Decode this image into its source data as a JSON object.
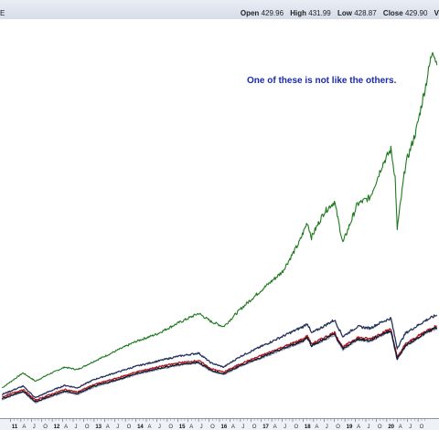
{
  "header": {
    "symbol_fragment": "E",
    "open_label": "Open",
    "open_value": "429.96",
    "high_label": "High",
    "high_value": "431.99",
    "low_label": "Low",
    "low_value": "428.87",
    "close_label": "Close",
    "close_value": "429.90",
    "trailing_fragment": "V"
  },
  "annotation": "One of these is not like the others.",
  "chart_data": {
    "type": "line",
    "title": "",
    "x_tick_labels": [
      "11",
      "A",
      "J",
      "O",
      "12",
      "A",
      "J",
      "O",
      "13",
      "A",
      "J",
      "O",
      "14",
      "A",
      "J",
      "O",
      "15",
      "A",
      "J",
      "O",
      "16",
      "A",
      "J",
      "O",
      "17",
      "A",
      "J",
      "O",
      "18",
      "A",
      "J",
      "O",
      "19",
      "A",
      "J",
      "O",
      "20",
      "A",
      "J",
      "O"
    ],
    "x_range": [
      "2010-10",
      "2021-04"
    ],
    "grid": false,
    "series": [
      {
        "color": "#1e7a1e",
        "points": [
          [
            2010.8,
            30
          ],
          [
            2011.3,
            48
          ],
          [
            2011.6,
            38
          ],
          [
            2011.9,
            46
          ],
          [
            2012.3,
            55
          ],
          [
            2012.6,
            52
          ],
          [
            2013.0,
            62
          ],
          [
            2013.5,
            74
          ],
          [
            2014.0,
            86
          ],
          [
            2014.5,
            95
          ],
          [
            2015.0,
            108
          ],
          [
            2015.5,
            120
          ],
          [
            2015.8,
            110
          ],
          [
            2016.1,
            104
          ],
          [
            2016.5,
            125
          ],
          [
            2017.0,
            148
          ],
          [
            2017.5,
            170
          ],
          [
            2017.9,
            205
          ],
          [
            2018.1,
            230
          ],
          [
            2018.2,
            212
          ],
          [
            2018.5,
            242
          ],
          [
            2018.75,
            255
          ],
          [
            2018.95,
            205
          ],
          [
            2019.3,
            252
          ],
          [
            2019.6,
            260
          ],
          [
            2019.9,
            300
          ],
          [
            2020.1,
            318
          ],
          [
            2020.2,
            285
          ],
          [
            2020.25,
            222
          ],
          [
            2020.45,
            300
          ],
          [
            2020.7,
            340
          ],
          [
            2020.95,
            400
          ],
          [
            2021.1,
            440
          ],
          [
            2021.2,
            420
          ]
        ]
      },
      {
        "color": "#26335e",
        "points": [
          [
            2010.8,
            22
          ],
          [
            2011.3,
            32
          ],
          [
            2011.6,
            18
          ],
          [
            2011.9,
            25
          ],
          [
            2012.3,
            33
          ],
          [
            2012.6,
            30
          ],
          [
            2013.0,
            40
          ],
          [
            2013.5,
            48
          ],
          [
            2014.0,
            56
          ],
          [
            2014.5,
            62
          ],
          [
            2015.0,
            68
          ],
          [
            2015.5,
            72
          ],
          [
            2015.8,
            60
          ],
          [
            2016.1,
            55
          ],
          [
            2016.5,
            68
          ],
          [
            2017.0,
            80
          ],
          [
            2017.5,
            92
          ],
          [
            2018.0,
            104
          ],
          [
            2018.1,
            108
          ],
          [
            2018.2,
            96
          ],
          [
            2018.75,
            112
          ],
          [
            2018.95,
            92
          ],
          [
            2019.3,
            104
          ],
          [
            2019.6,
            102
          ],
          [
            2019.9,
            110
          ],
          [
            2020.1,
            114
          ],
          [
            2020.25,
            78
          ],
          [
            2020.45,
            96
          ],
          [
            2020.7,
            104
          ],
          [
            2020.95,
            112
          ],
          [
            2021.2,
            118
          ]
        ]
      },
      {
        "color": "#8f98ad",
        "points": [
          [
            2010.8,
            16
          ],
          [
            2011.3,
            25
          ],
          [
            2011.6,
            12
          ],
          [
            2011.9,
            18
          ],
          [
            2012.3,
            25
          ],
          [
            2012.6,
            22
          ],
          [
            2013.0,
            31
          ],
          [
            2013.5,
            38
          ],
          [
            2014.0,
            46
          ],
          [
            2014.5,
            52
          ],
          [
            2015.0,
            57
          ],
          [
            2015.5,
            60
          ],
          [
            2015.8,
            50
          ],
          [
            2016.1,
            46
          ],
          [
            2016.5,
            56
          ],
          [
            2017.0,
            66
          ],
          [
            2017.5,
            76
          ],
          [
            2018.0,
            86
          ],
          [
            2018.1,
            90
          ],
          [
            2018.2,
            80
          ],
          [
            2018.75,
            94
          ],
          [
            2018.95,
            76
          ],
          [
            2019.3,
            88
          ],
          [
            2019.6,
            86
          ],
          [
            2019.9,
            94
          ],
          [
            2020.1,
            98
          ],
          [
            2020.25,
            64
          ],
          [
            2020.45,
            80
          ],
          [
            2020.7,
            88
          ],
          [
            2020.95,
            96
          ],
          [
            2021.2,
            102
          ]
        ]
      },
      {
        "color": "#b3181b",
        "points": [
          [
            2010.8,
            19
          ],
          [
            2011.3,
            28
          ],
          [
            2011.6,
            15
          ],
          [
            2011.9,
            21
          ],
          [
            2012.3,
            28
          ],
          [
            2012.6,
            25
          ],
          [
            2013.0,
            34
          ],
          [
            2013.5,
            41
          ],
          [
            2014.0,
            49
          ],
          [
            2014.5,
            55
          ],
          [
            2015.0,
            60
          ],
          [
            2015.5,
            63
          ],
          [
            2015.8,
            53
          ],
          [
            2016.1,
            49
          ],
          [
            2016.5,
            59
          ],
          [
            2017.0,
            69
          ],
          [
            2017.5,
            79
          ],
          [
            2018.0,
            89
          ],
          [
            2018.1,
            93
          ],
          [
            2018.2,
            83
          ],
          [
            2018.75,
            97
          ],
          [
            2018.95,
            79
          ],
          [
            2019.3,
            91
          ],
          [
            2019.6,
            89
          ],
          [
            2019.9,
            97
          ],
          [
            2020.1,
            101
          ],
          [
            2020.25,
            67
          ],
          [
            2020.45,
            83
          ],
          [
            2020.7,
            91
          ],
          [
            2020.95,
            99
          ],
          [
            2021.2,
            105
          ]
        ]
      },
      {
        "color": "#121a33",
        "points": [
          [
            2010.8,
            17
          ],
          [
            2011.3,
            26
          ],
          [
            2011.6,
            13
          ],
          [
            2011.9,
            19
          ],
          [
            2012.3,
            26
          ],
          [
            2012.6,
            23
          ],
          [
            2013.0,
            32
          ],
          [
            2013.5,
            39
          ],
          [
            2014.0,
            47
          ],
          [
            2014.5,
            53
          ],
          [
            2015.0,
            58
          ],
          [
            2015.5,
            61
          ],
          [
            2015.8,
            51
          ],
          [
            2016.1,
            47
          ],
          [
            2016.5,
            57
          ],
          [
            2017.0,
            67
          ],
          [
            2017.5,
            77
          ],
          [
            2018.0,
            87
          ],
          [
            2018.1,
            91
          ],
          [
            2018.2,
            81
          ],
          [
            2018.75,
            95
          ],
          [
            2018.95,
            77
          ],
          [
            2019.3,
            89
          ],
          [
            2019.6,
            87
          ],
          [
            2019.9,
            95
          ],
          [
            2020.1,
            99
          ],
          [
            2020.25,
            65
          ],
          [
            2020.45,
            81
          ],
          [
            2020.7,
            89
          ],
          [
            2020.95,
            97
          ],
          [
            2021.2,
            103
          ]
        ]
      }
    ]
  }
}
